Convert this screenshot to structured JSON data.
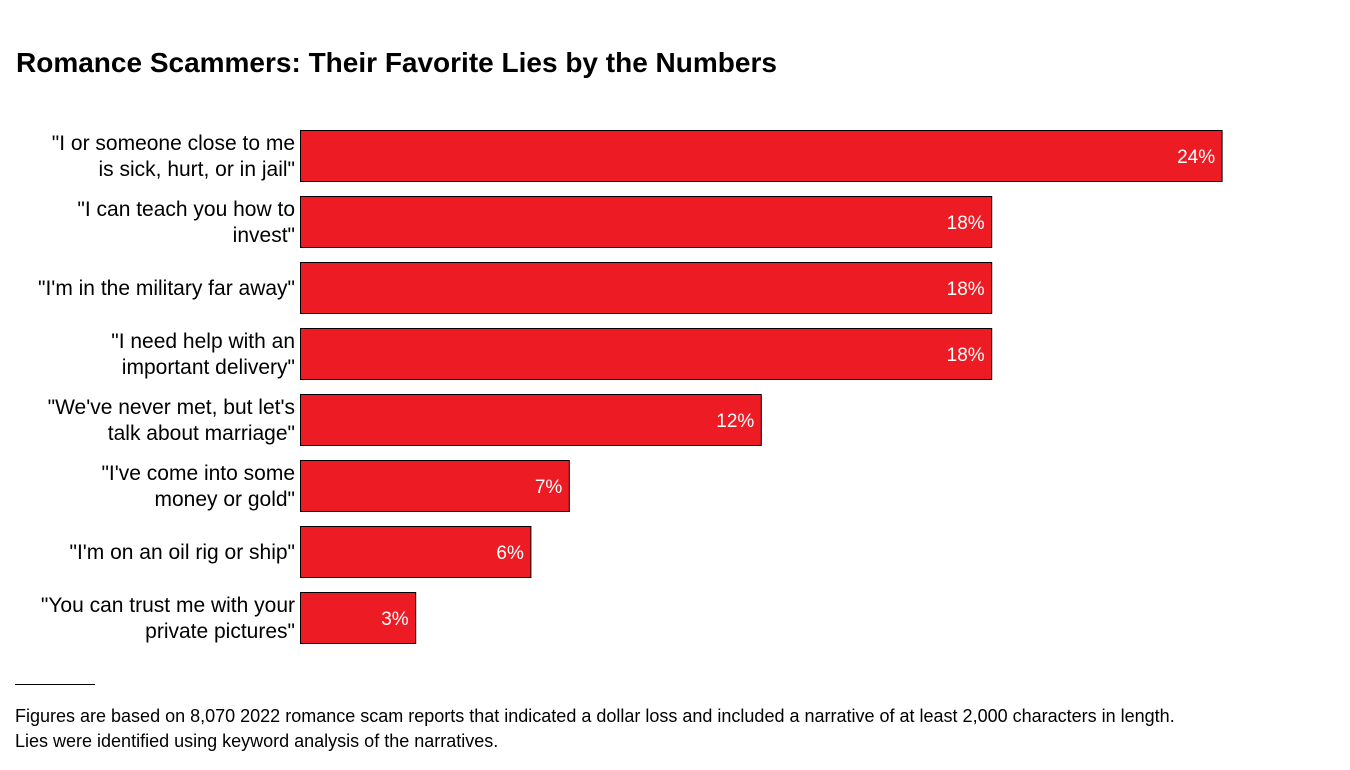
{
  "title": "Romance Scammers: Their Favorite Lies by the Numbers",
  "chart_data": {
    "type": "bar",
    "orientation": "horizontal",
    "title": "Romance Scammers: Their Favorite Lies by the Numbers",
    "categories": [
      [
        "\"I or someone close to me",
        "is sick, hurt, or in jail\""
      ],
      [
        "\"I can teach you how to",
        "invest\""
      ],
      [
        "\"I'm in the military far away\""
      ],
      [
        "\"I need help with an",
        "important delivery\""
      ],
      [
        "\"We've never met, but let's",
        "talk about marriage\""
      ],
      [
        "\"I've come into some",
        "money or gold\""
      ],
      [
        "\"I'm on an oil rig or ship\""
      ],
      [
        "\"You can trust me with your",
        "private pictures\""
      ]
    ],
    "values": [
      24,
      18,
      18,
      18,
      12,
      7,
      6,
      3
    ],
    "value_labels": [
      "24%",
      "18%",
      "18%",
      "18%",
      "12%",
      "7%",
      "6%",
      "3%"
    ],
    "unit": "%",
    "bar_color": "#ED1C24",
    "label_color": "#FFFFFF",
    "axis_visible": false,
    "grid": false,
    "legend": "none"
  },
  "footnote": {
    "line1": "Figures are based on 8,070 2022 romance scam reports that indicated a dollar loss and included a narrative of at least 2,000 characters in length.",
    "line2": "Lies were identified using keyword analysis of the narratives."
  }
}
